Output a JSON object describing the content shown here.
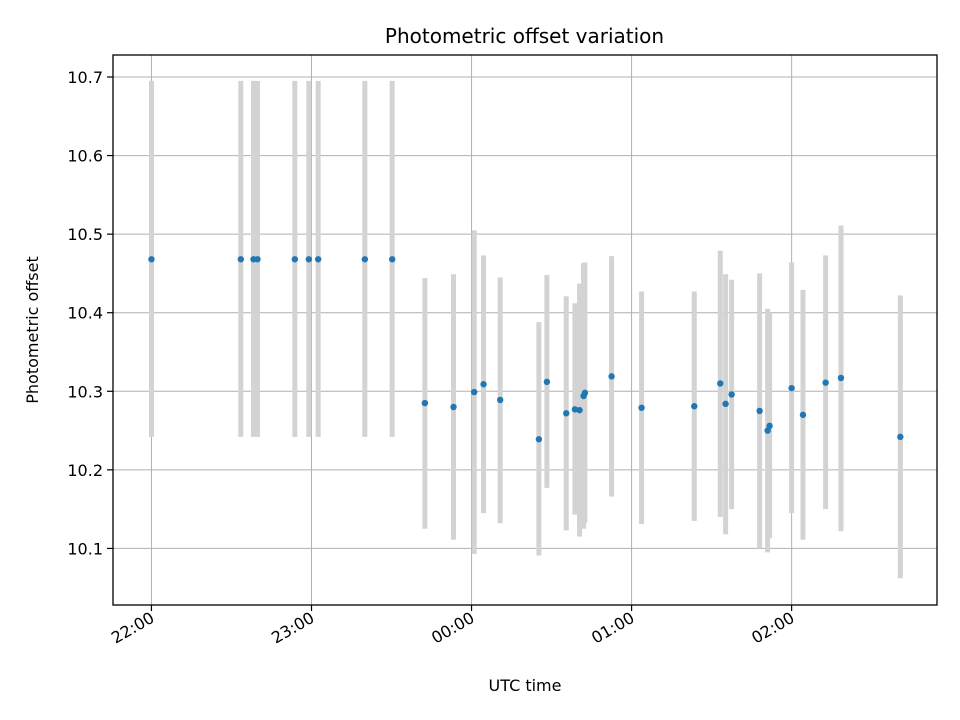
{
  "chart_data": {
    "type": "scatter",
    "title": "Photometric offset variation",
    "xlabel": "UTC time",
    "ylabel": "Photometric offset",
    "x_axis": "time",
    "xlim": [
      "21:45:35",
      "02:54:30"
    ],
    "ylim": [
      10.028,
      10.728
    ],
    "grid": true,
    "x_ticks": [
      "22:00",
      "23:00",
      "00:00",
      "01:00",
      "02:00"
    ],
    "y_ticks": [
      "10.1",
      "10.2",
      "10.3",
      "10.4",
      "10.5",
      "10.6",
      "10.7"
    ],
    "colors": {
      "point": "#1f77b4",
      "errorbar": "#d3d3d3",
      "grid": "#b0b0b0"
    },
    "points": [
      {
        "t": "22:00:00",
        "y": 10.468,
        "low": 10.242,
        "high": 10.695
      },
      {
        "t": "22:33:30",
        "y": 10.468,
        "low": 10.242,
        "high": 10.695
      },
      {
        "t": "22:38:15",
        "y": 10.468,
        "low": 10.242,
        "high": 10.695
      },
      {
        "t": "22:39:45",
        "y": 10.468,
        "low": 10.242,
        "high": 10.695
      },
      {
        "t": "22:53:45",
        "y": 10.468,
        "low": 10.242,
        "high": 10.695
      },
      {
        "t": "22:59:00",
        "y": 10.468,
        "low": 10.242,
        "high": 10.695
      },
      {
        "t": "23:02:30",
        "y": 10.468,
        "low": 10.242,
        "high": 10.695
      },
      {
        "t": "23:20:00",
        "y": 10.468,
        "low": 10.242,
        "high": 10.695
      },
      {
        "t": "23:30:15",
        "y": 10.468,
        "low": 10.242,
        "high": 10.695
      },
      {
        "t": "23:42:30",
        "y": 10.285,
        "low": 10.125,
        "high": 10.444
      },
      {
        "t": "23:53:15",
        "y": 10.28,
        "low": 10.111,
        "high": 10.449
      },
      {
        "t": "00:01:00",
        "y": 10.299,
        "low": 10.093,
        "high": 10.505
      },
      {
        "t": "00:04:30",
        "y": 10.309,
        "low": 10.145,
        "high": 10.473
      },
      {
        "t": "00:10:45",
        "y": 10.289,
        "low": 10.132,
        "high": 10.445
      },
      {
        "t": "00:25:15",
        "y": 10.239,
        "low": 10.091,
        "high": 10.388
      },
      {
        "t": "00:28:15",
        "y": 10.312,
        "low": 10.177,
        "high": 10.448
      },
      {
        "t": "00:35:30",
        "y": 10.272,
        "low": 10.123,
        "high": 10.421
      },
      {
        "t": "00:38:45",
        "y": 10.277,
        "low": 10.143,
        "high": 10.412
      },
      {
        "t": "00:40:30",
        "y": 10.276,
        "low": 10.115,
        "high": 10.437
      },
      {
        "t": "00:42:00",
        "y": 10.294,
        "low": 10.125,
        "high": 10.463
      },
      {
        "t": "00:42:30",
        "y": 10.298,
        "low": 10.133,
        "high": 10.464
      },
      {
        "t": "00:52:30",
        "y": 10.319,
        "low": 10.166,
        "high": 10.472
      },
      {
        "t": "01:03:45",
        "y": 10.279,
        "low": 10.131,
        "high": 10.427
      },
      {
        "t": "01:23:30",
        "y": 10.281,
        "low": 10.135,
        "high": 10.427
      },
      {
        "t": "01:33:15",
        "y": 10.31,
        "low": 10.14,
        "high": 10.479
      },
      {
        "t": "01:35:15",
        "y": 10.284,
        "low": 10.118,
        "high": 10.449
      },
      {
        "t": "01:37:30",
        "y": 10.296,
        "low": 10.15,
        "high": 10.442
      },
      {
        "t": "01:48:00",
        "y": 10.275,
        "low": 10.1,
        "high": 10.45
      },
      {
        "t": "01:51:00",
        "y": 10.25,
        "low": 10.095,
        "high": 10.405
      },
      {
        "t": "01:51:45",
        "y": 10.256,
        "low": 10.113,
        "high": 10.4
      },
      {
        "t": "02:00:00",
        "y": 10.304,
        "low": 10.145,
        "high": 10.464
      },
      {
        "t": "02:04:15",
        "y": 10.27,
        "low": 10.111,
        "high": 10.429
      },
      {
        "t": "02:12:45",
        "y": 10.311,
        "low": 10.15,
        "high": 10.473
      },
      {
        "t": "02:18:30",
        "y": 10.317,
        "low": 10.122,
        "high": 10.511
      },
      {
        "t": "02:40:45",
        "y": 10.242,
        "low": 10.062,
        "high": 10.422
      }
    ]
  }
}
